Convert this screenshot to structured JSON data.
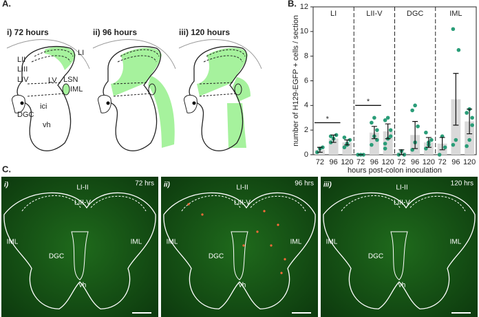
{
  "panel_a": {
    "label": "A.",
    "diagrams": [
      {
        "label": "i) 72 hours"
      },
      {
        "label": "ii) 96 hours"
      },
      {
        "label": "iii) 120 hours"
      }
    ],
    "regions": [
      "LI",
      "LII",
      "LIII",
      "LIV",
      "LV",
      "LSN",
      "IML",
      "ici",
      "DGC",
      "vh"
    ]
  },
  "chart_data": {
    "type": "bar",
    "label": "B.",
    "ylabel": "number of H129-EGFP + cells / section",
    "xlabel": "hours post-colon inoculation",
    "categories": [
      "72",
      "96",
      "120"
    ],
    "ylim": [
      0,
      12
    ],
    "yticks": [
      0,
      2,
      4,
      6,
      8,
      10,
      12
    ],
    "bar_color": "#d9d9d9",
    "point_color": "#2a9d78",
    "facets": [
      {
        "name": "LI",
        "values": [
          0.4,
          1.3,
          1.0
        ],
        "errors": [
          0.2,
          0.3,
          0.2
        ],
        "points": [
          [
            0.2,
            0.5,
            0.6
          ],
          [
            1.0,
            1.3,
            1.6,
            1.5
          ],
          [
            0.6,
            0.9,
            1.2,
            1.4,
            0.8
          ]
        ],
        "annotation": "*"
      },
      {
        "name": "LII-V",
        "values": [
          0,
          1.8,
          1.9
        ],
        "errors": [
          0,
          0.5,
          0.6
        ],
        "points": [
          [
            0,
            0,
            0
          ],
          [
            0.8,
            1.5,
            2.0,
            2.6,
            3.0,
            1.2
          ],
          [
            0.9,
            1.3,
            2.0,
            2.8,
            3.0,
            1.5,
            0.5
          ]
        ],
        "annotation": "*"
      },
      {
        "name": "DGC",
        "values": [
          0.2,
          1.6,
          1.0
        ],
        "errors": [
          0.2,
          1.1,
          0.4
        ],
        "points": [
          [
            0,
            0.3,
            0
          ],
          [
            0.4,
            1.0,
            2.3,
            3.6,
            4.0
          ],
          [
            0.5,
            0.8,
            1.2,
            1.8,
            1.0
          ]
        ]
      },
      {
        "name": "IML",
        "values": [
          0.9,
          4.5,
          2.7
        ],
        "errors": [
          0.5,
          2.1,
          1.0
        ],
        "points": [
          [
            0,
            1.5,
            0.6
          ],
          [
            0.8,
            1.2,
            8.5,
            10.2
          ],
          [
            0.7,
            1.2,
            2.4,
            3.4,
            3.7,
            3.0
          ]
        ]
      }
    ]
  },
  "panel_c": {
    "label": "C.",
    "images": [
      {
        "label": "i)",
        "time": "72 hrs",
        "regions": [
          "LI-II",
          "LIII-V",
          "IML",
          "IML",
          "DGC",
          "vh"
        ]
      },
      {
        "label": "ii)",
        "time": "96 hrs",
        "regions": [
          "LI-II",
          "LIII-V",
          "IML",
          "IML",
          "DGC",
          "vh"
        ]
      },
      {
        "label": "iii)",
        "time": "120 hrs",
        "regions": [
          "LI-II",
          "LIII-V",
          "IML",
          "IML",
          "DGC",
          "vh"
        ]
      }
    ]
  }
}
